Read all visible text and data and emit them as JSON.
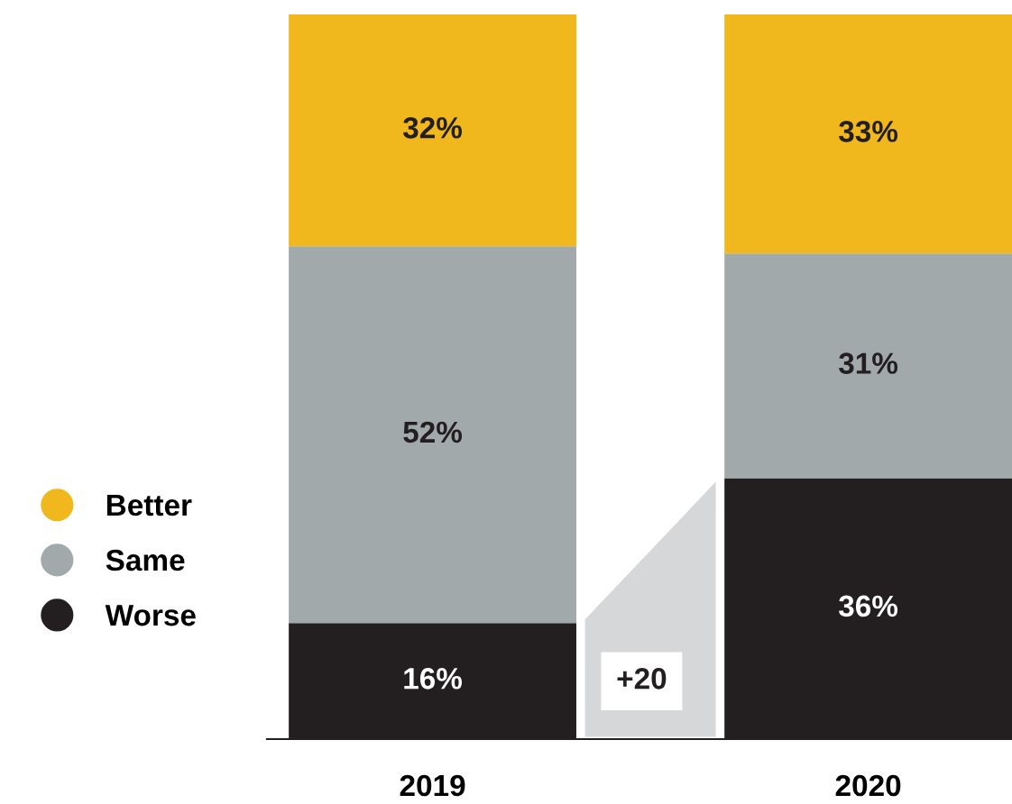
{
  "chart_data": {
    "type": "bar",
    "stacked": true,
    "categories": [
      "2019",
      "2020"
    ],
    "series": [
      {
        "name": "Worse",
        "color": "#231f20",
        "values": [
          16,
          36
        ],
        "value_labels": [
          "16%",
          "36%"
        ]
      },
      {
        "name": "Same",
        "color": "#a2a9ab",
        "values": [
          52,
          31
        ],
        "value_labels": [
          "52%",
          "31%"
        ]
      },
      {
        "name": "Better",
        "color": "#f0b81c",
        "values": [
          32,
          33
        ],
        "value_labels": [
          "32%",
          "33%"
        ]
      }
    ],
    "legend": "left",
    "grid": false,
    "annotations": [
      "+20"
    ]
  }
}
